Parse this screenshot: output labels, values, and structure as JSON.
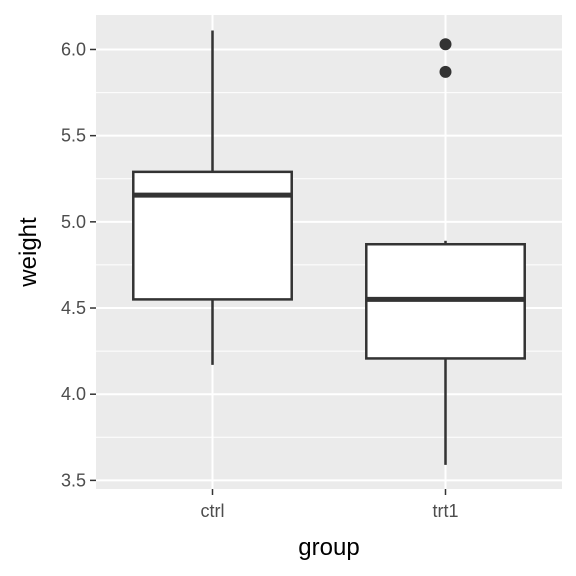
{
  "chart_data": {
    "type": "boxplot",
    "xlabel": "group",
    "ylabel": "weight",
    "categories": [
      "ctrl",
      "trt1"
    ],
    "ylim": [
      3.45,
      6.2
    ],
    "yticks": [
      3.5,
      4.0,
      4.5,
      5.0,
      5.5,
      6.0
    ],
    "ytick_labels": [
      "3.5",
      "4.0",
      "4.5",
      "5.0",
      "5.5",
      "6.0"
    ],
    "grid": true,
    "boxes": [
      {
        "category": "ctrl",
        "min": 4.17,
        "q1": 4.55,
        "median": 5.155,
        "q3": 5.29,
        "max": 6.11,
        "outliers": []
      },
      {
        "category": "trt1",
        "min": 3.59,
        "q1": 4.2075,
        "median": 4.55,
        "q3": 4.87,
        "max": 4.89,
        "outliers": [
          5.87,
          6.03
        ]
      }
    ],
    "colors": {
      "panel_background": "#ebebeb",
      "grid_line": "#ffffff",
      "box_fill": "#ffffff",
      "box_stroke": "#333333",
      "outlier": "#333333",
      "tick_text": "#4d4d4d",
      "title_text": "#000000"
    }
  }
}
